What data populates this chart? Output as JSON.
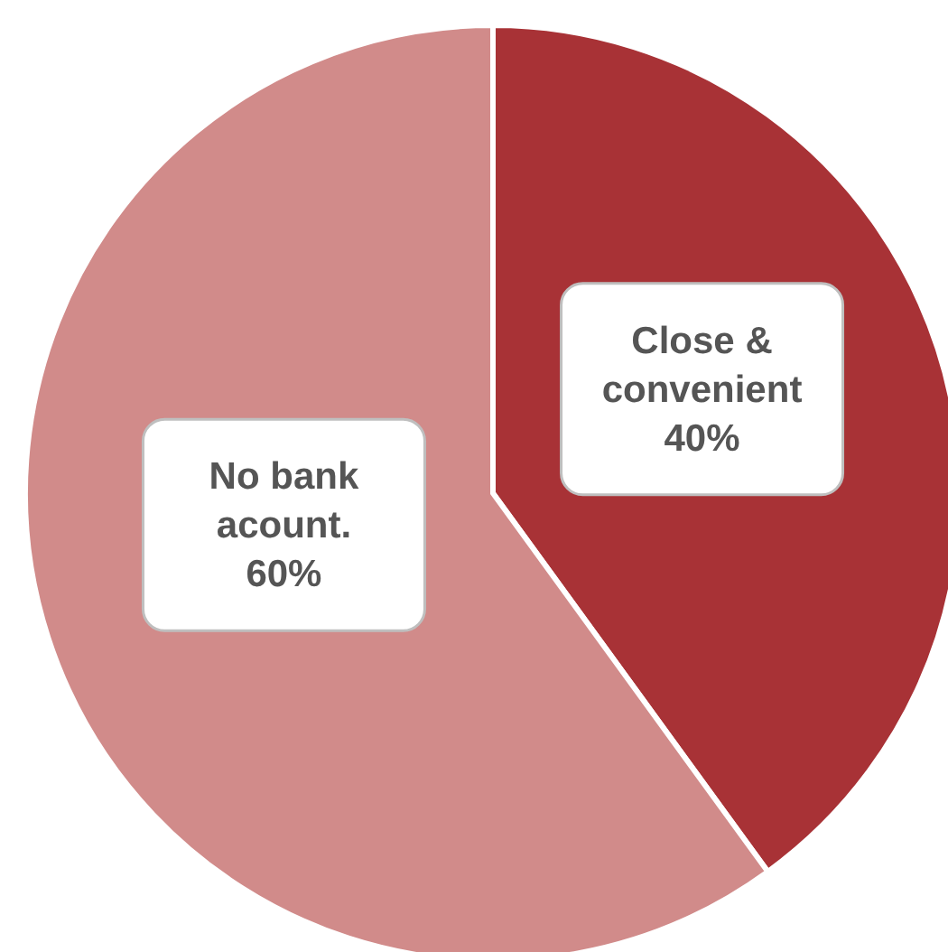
{
  "chart_data": {
    "type": "pie",
    "categories": [
      "Close & convenient",
      "No bank acount."
    ],
    "values": [
      40,
      60
    ],
    "colors": [
      "#a83236",
      "#d18b8a"
    ],
    "value_labels": [
      "40%",
      "60%"
    ]
  }
}
